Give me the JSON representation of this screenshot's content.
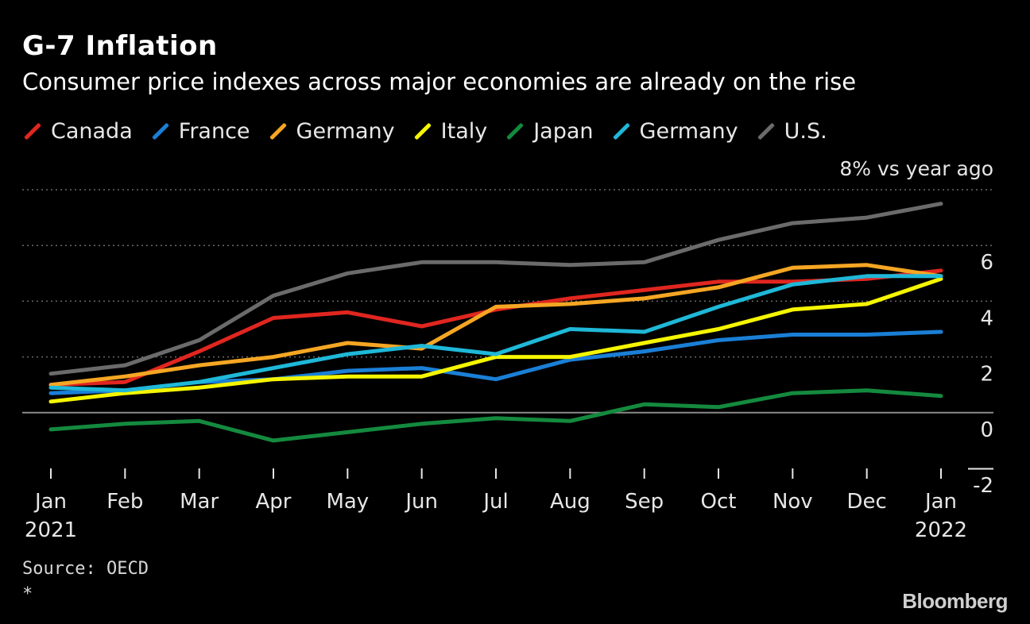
{
  "header": {
    "title": "G-7 Inflation",
    "subtitle": "Consumer price indexes across major economies are already on the rise"
  },
  "footer": {
    "source": "Source: OECD",
    "footnote": "*",
    "brand": "Bloomberg"
  },
  "chart_data": {
    "type": "line",
    "title": "G-7 Inflation",
    "subtitle": "Consumer price indexes across major economies are already on the rise",
    "y_unit_label": "8% vs year ago",
    "x": [
      {
        "month": "Jan",
        "year": "2021"
      },
      {
        "month": "Feb",
        "year": ""
      },
      {
        "month": "Mar",
        "year": ""
      },
      {
        "month": "Apr",
        "year": ""
      },
      {
        "month": "May",
        "year": ""
      },
      {
        "month": "Jun",
        "year": ""
      },
      {
        "month": "Jul",
        "year": ""
      },
      {
        "month": "Aug",
        "year": ""
      },
      {
        "month": "Sep",
        "year": ""
      },
      {
        "month": "Oct",
        "year": ""
      },
      {
        "month": "Nov",
        "year": ""
      },
      {
        "month": "Dec",
        "year": ""
      },
      {
        "month": "Jan",
        "year": "2022"
      }
    ],
    "ylim": [
      -2,
      8
    ],
    "yticks": [
      -2,
      0,
      2,
      4,
      6,
      8
    ],
    "ytick_labels": [
      "-2",
      "0",
      "2",
      "4",
      "6",
      ""
    ],
    "grid": true,
    "legend_position": "top-left",
    "series": [
      {
        "name": "Canada",
        "color": "#e0261f",
        "values": [
          1.0,
          1.1,
          2.2,
          3.4,
          3.6,
          3.1,
          3.7,
          4.1,
          4.4,
          4.7,
          4.7,
          4.8,
          5.1
        ]
      },
      {
        "name": "France",
        "color": "#1a7fd6",
        "values": [
          0.7,
          0.8,
          1.1,
          1.2,
          1.5,
          1.6,
          1.2,
          1.9,
          2.2,
          2.6,
          2.8,
          2.8,
          2.9
        ]
      },
      {
        "name": "Germany",
        "color": "#f5a623",
        "values": [
          1.0,
          1.3,
          1.7,
          2.0,
          2.5,
          2.3,
          3.8,
          3.9,
          4.1,
          4.5,
          5.2,
          5.3,
          4.9
        ]
      },
      {
        "name": "Italy",
        "color": "#f5f500",
        "values": [
          0.4,
          0.7,
          0.9,
          1.2,
          1.3,
          1.3,
          2.0,
          2.0,
          2.5,
          3.0,
          3.7,
          3.9,
          4.8
        ]
      },
      {
        "name": "Japan",
        "color": "#148a3e",
        "values": [
          -0.6,
          -0.4,
          -0.3,
          -1.0,
          -0.7,
          -0.4,
          -0.2,
          -0.3,
          0.3,
          0.2,
          0.7,
          0.8,
          0.6
        ]
      },
      {
        "name": "Germany",
        "color": "#1fb8d8",
        "values": [
          0.9,
          0.8,
          1.1,
          1.6,
          2.1,
          2.4,
          2.1,
          3.0,
          2.9,
          3.8,
          4.6,
          4.9,
          4.9
        ]
      },
      {
        "name": "U.S.",
        "color": "#6b6b6b",
        "values": [
          1.4,
          1.7,
          2.6,
          4.2,
          5.0,
          5.4,
          5.4,
          5.3,
          5.4,
          6.2,
          6.8,
          7.0,
          7.5
        ]
      }
    ]
  }
}
